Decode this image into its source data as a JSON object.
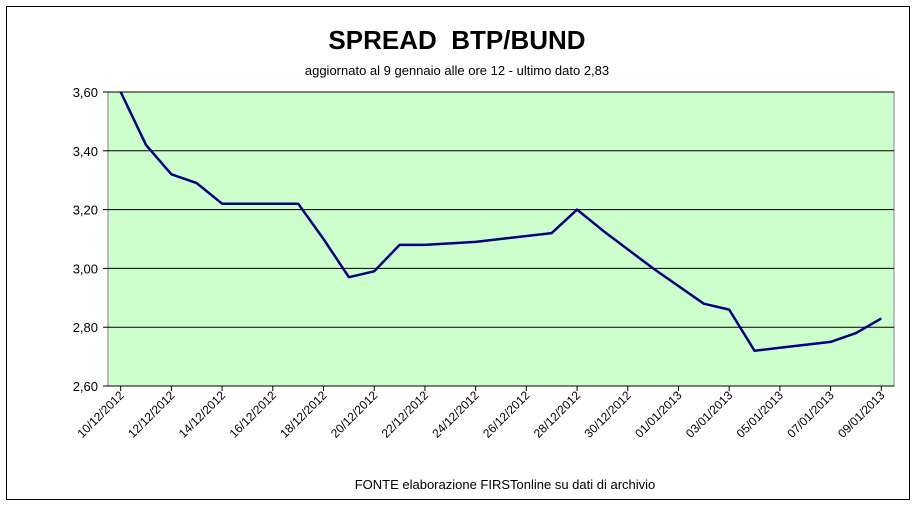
{
  "chart_data": {
    "type": "line",
    "title": "SPREAD  BTP/BUND",
    "subtitle": "aggiornato al 9 gennaio alle ore 12 - ultimo dato 2,83",
    "source": "FONTE elaborazione FIRSTonline su dati di archivio",
    "x_tick_labels": [
      "10/12/2012",
      "12/12/2012",
      "14/12/2012",
      "16/12/2012",
      "18/12/2012",
      "20/12/2012",
      "22/12/2012",
      "24/12/2012",
      "26/12/2012",
      "28/12/2012",
      "30/12/2012",
      "01/01/2013",
      "03/01/2013",
      "05/01/2013",
      "07/01/2013",
      "09/01/2013"
    ],
    "y_tick_labels": [
      "2,60",
      "2,80",
      "3,00",
      "3,20",
      "3,40",
      "3,60"
    ],
    "y_ticks": [
      2.6,
      2.8,
      3.0,
      3.2,
      3.4,
      3.6
    ],
    "ylim": [
      2.6,
      3.6
    ],
    "x_start": "2012-12-10",
    "x_end": "2013-01-09",
    "grid": true,
    "legend": false,
    "colors": {
      "plot_background": "#ccffcc",
      "line": "#000080",
      "grid": "#000000"
    },
    "series": [
      {
        "x": [
          "2012-12-10",
          "2012-12-11",
          "2012-12-12",
          "2012-12-13",
          "2012-12-14",
          "2012-12-15",
          "2012-12-17",
          "2012-12-18",
          "2012-12-19",
          "2012-12-20",
          "2012-12-21",
          "2012-12-22",
          "2012-12-24",
          "2012-12-27",
          "2012-12-28",
          "2012-12-29",
          "2012-12-31",
          "2013-01-02",
          "2013-01-03",
          "2013-01-04",
          "2013-01-05",
          "2013-01-07",
          "2013-01-08",
          "2013-01-09"
        ],
        "values": [
          3.6,
          3.42,
          3.32,
          3.29,
          3.22,
          3.22,
          3.22,
          3.1,
          2.97,
          2.99,
          3.08,
          3.08,
          3.09,
          3.12,
          3.2,
          3.13,
          3.0,
          2.88,
          2.86,
          2.72,
          2.73,
          2.75,
          2.78,
          2.83
        ]
      }
    ]
  }
}
